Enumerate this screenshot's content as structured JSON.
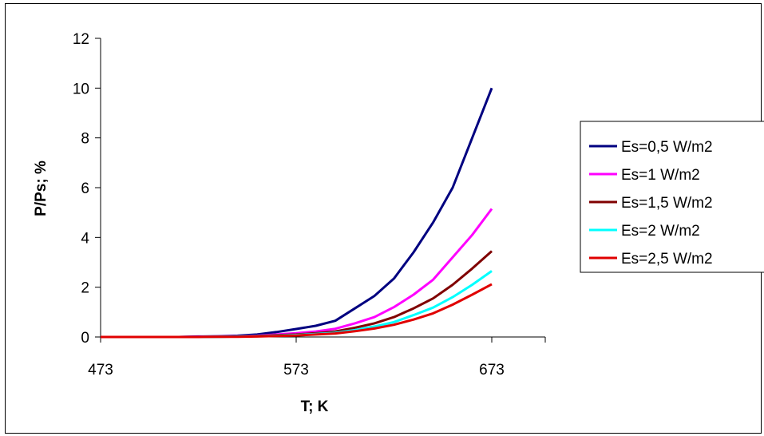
{
  "chart_data": {
    "type": "line",
    "xlabel": "T; K",
    "ylabel": "P/Ps; %",
    "xlim": [
      473,
      673
    ],
    "ylim": [
      0,
      12
    ],
    "x_ticks": [
      473,
      573,
      673
    ],
    "y_ticks": [
      0,
      2,
      4,
      6,
      8,
      10,
      12
    ],
    "x": [
      473,
      483,
      493,
      503,
      513,
      523,
      533,
      543,
      553,
      563,
      573,
      583,
      593,
      603,
      613,
      623,
      633,
      643,
      653,
      663,
      673
    ],
    "grid": false,
    "legend_position": "right",
    "series": [
      {
        "name": "Es=0,5 W/m2",
        "color": "#000080",
        "values": [
          0,
          0,
          0,
          0,
          0,
          0.02,
          0.03,
          0.05,
          0.1,
          0.2,
          0.32,
          0.45,
          0.65,
          1.15,
          1.65,
          2.35,
          3.4,
          4.6,
          6.0,
          8.0,
          10.0
        ]
      },
      {
        "name": "Es=1 W/m2",
        "color": "#FF00FF",
        "values": [
          0,
          0,
          0,
          0,
          0,
          0.01,
          0.02,
          0.03,
          0.05,
          0.1,
          0.15,
          0.22,
          0.33,
          0.55,
          0.8,
          1.2,
          1.7,
          2.3,
          3.2,
          4.1,
          5.15
        ]
      },
      {
        "name": "Es=1,5 W/m2",
        "color": "#800000",
        "values": [
          0,
          0,
          0,
          0,
          0,
          0,
          0.01,
          0.02,
          0.04,
          0.07,
          0.1,
          0.15,
          0.22,
          0.37,
          0.55,
          0.8,
          1.15,
          1.55,
          2.1,
          2.75,
          3.45
        ]
      },
      {
        "name": "Es=2 W/m2",
        "color": "#00FFFF",
        "values": [
          0,
          0,
          0,
          0,
          0,
          0,
          0.01,
          0.02,
          0.03,
          0.05,
          0.08,
          0.12,
          0.17,
          0.28,
          0.42,
          0.6,
          0.88,
          1.18,
          1.6,
          2.1,
          2.65
        ]
      },
      {
        "name": "Es=2,5 W/m2",
        "color": "#E00000",
        "values": [
          0,
          0,
          0,
          0,
          0,
          0,
          0.01,
          0.01,
          0.02,
          0.04,
          0.06,
          0.1,
          0.14,
          0.23,
          0.34,
          0.49,
          0.7,
          0.95,
          1.3,
          1.7,
          2.12
        ]
      }
    ]
  }
}
